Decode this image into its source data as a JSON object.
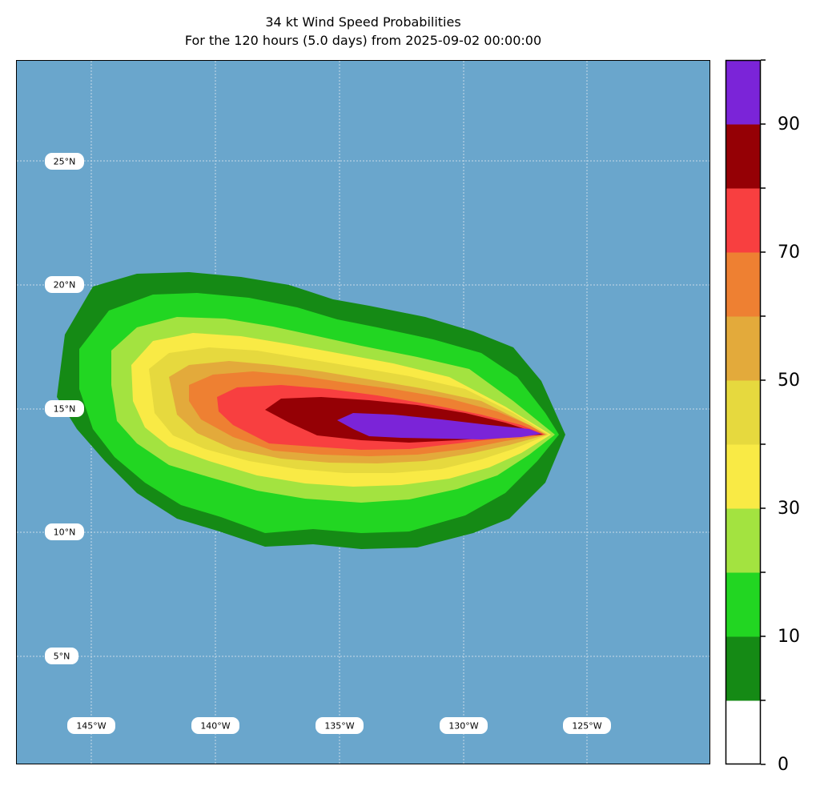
{
  "title": {
    "line1": "34 kt Wind Speed Probabilities",
    "line2": "For the 120 hours (5.0 days) from 2025-09-02 00:00:00"
  },
  "map": {
    "ocean_color": "#6aa6cc",
    "gridline_color": "#c8dbe8",
    "latitude_labels": [
      "25°N",
      "20°N",
      "15°N",
      "10°N",
      "5°N"
    ],
    "longitude_labels": [
      "145°W",
      "140°W",
      "135°W",
      "130°W",
      "125°W"
    ]
  },
  "colorbar": {
    "ticks": [
      "0",
      "10",
      "30",
      "50",
      "70",
      "90"
    ],
    "bins": [
      {
        "min": 0,
        "max": 5,
        "color": "#ffffff"
      },
      {
        "min": 5,
        "max": 10,
        "color": "#158a15"
      },
      {
        "min": 10,
        "max": 20,
        "color": "#22d622"
      },
      {
        "min": 20,
        "max": 30,
        "color": "#a3e340"
      },
      {
        "min": 30,
        "max": 40,
        "color": "#f9ea45"
      },
      {
        "min": 40,
        "max": 50,
        "color": "#e6d93e"
      },
      {
        "min": 50,
        "max": 60,
        "color": "#e3aa3b"
      },
      {
        "min": 60,
        "max": 70,
        "color": "#ee8032"
      },
      {
        "min": 70,
        "max": 80,
        "color": "#f83f40"
      },
      {
        "min": 80,
        "max": 90,
        "color": "#950005"
      },
      {
        "min": 90,
        "max": 100,
        "color": "#7b24d8"
      }
    ]
  }
}
